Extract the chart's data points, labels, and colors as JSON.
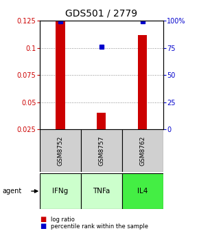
{
  "title": "GDS501 / 2779",
  "samples": [
    "GSM8752",
    "GSM8757",
    "GSM8762"
  ],
  "agents": [
    "IFNg",
    "TNFa",
    "IL4"
  ],
  "log_ratio": [
    0.125,
    0.04,
    0.112
  ],
  "percentile_rank": [
    99.5,
    76,
    99.5
  ],
  "bar_color": "#cc0000",
  "dot_color": "#0000cc",
  "ylim_left": [
    0.025,
    0.125
  ],
  "ylim_right": [
    0,
    100
  ],
  "yticks_left": [
    0.025,
    0.05,
    0.075,
    0.1,
    0.125
  ],
  "yticks_right": [
    0,
    25,
    50,
    75,
    100
  ],
  "ytick_labels_left": [
    "0.025",
    "0.05",
    "0.075",
    "0.1",
    "0.125"
  ],
  "ytick_labels_right": [
    "0",
    "25",
    "50",
    "75",
    "100%"
  ],
  "agent_colors": [
    "#ccffcc",
    "#ccffcc",
    "#44ee44"
  ],
  "sample_bg_color": "#d0d0d0",
  "grid_color": "#888888",
  "bar_width": 0.35,
  "title_fontsize": 10,
  "tick_fontsize": 7,
  "label_fontsize": 7
}
